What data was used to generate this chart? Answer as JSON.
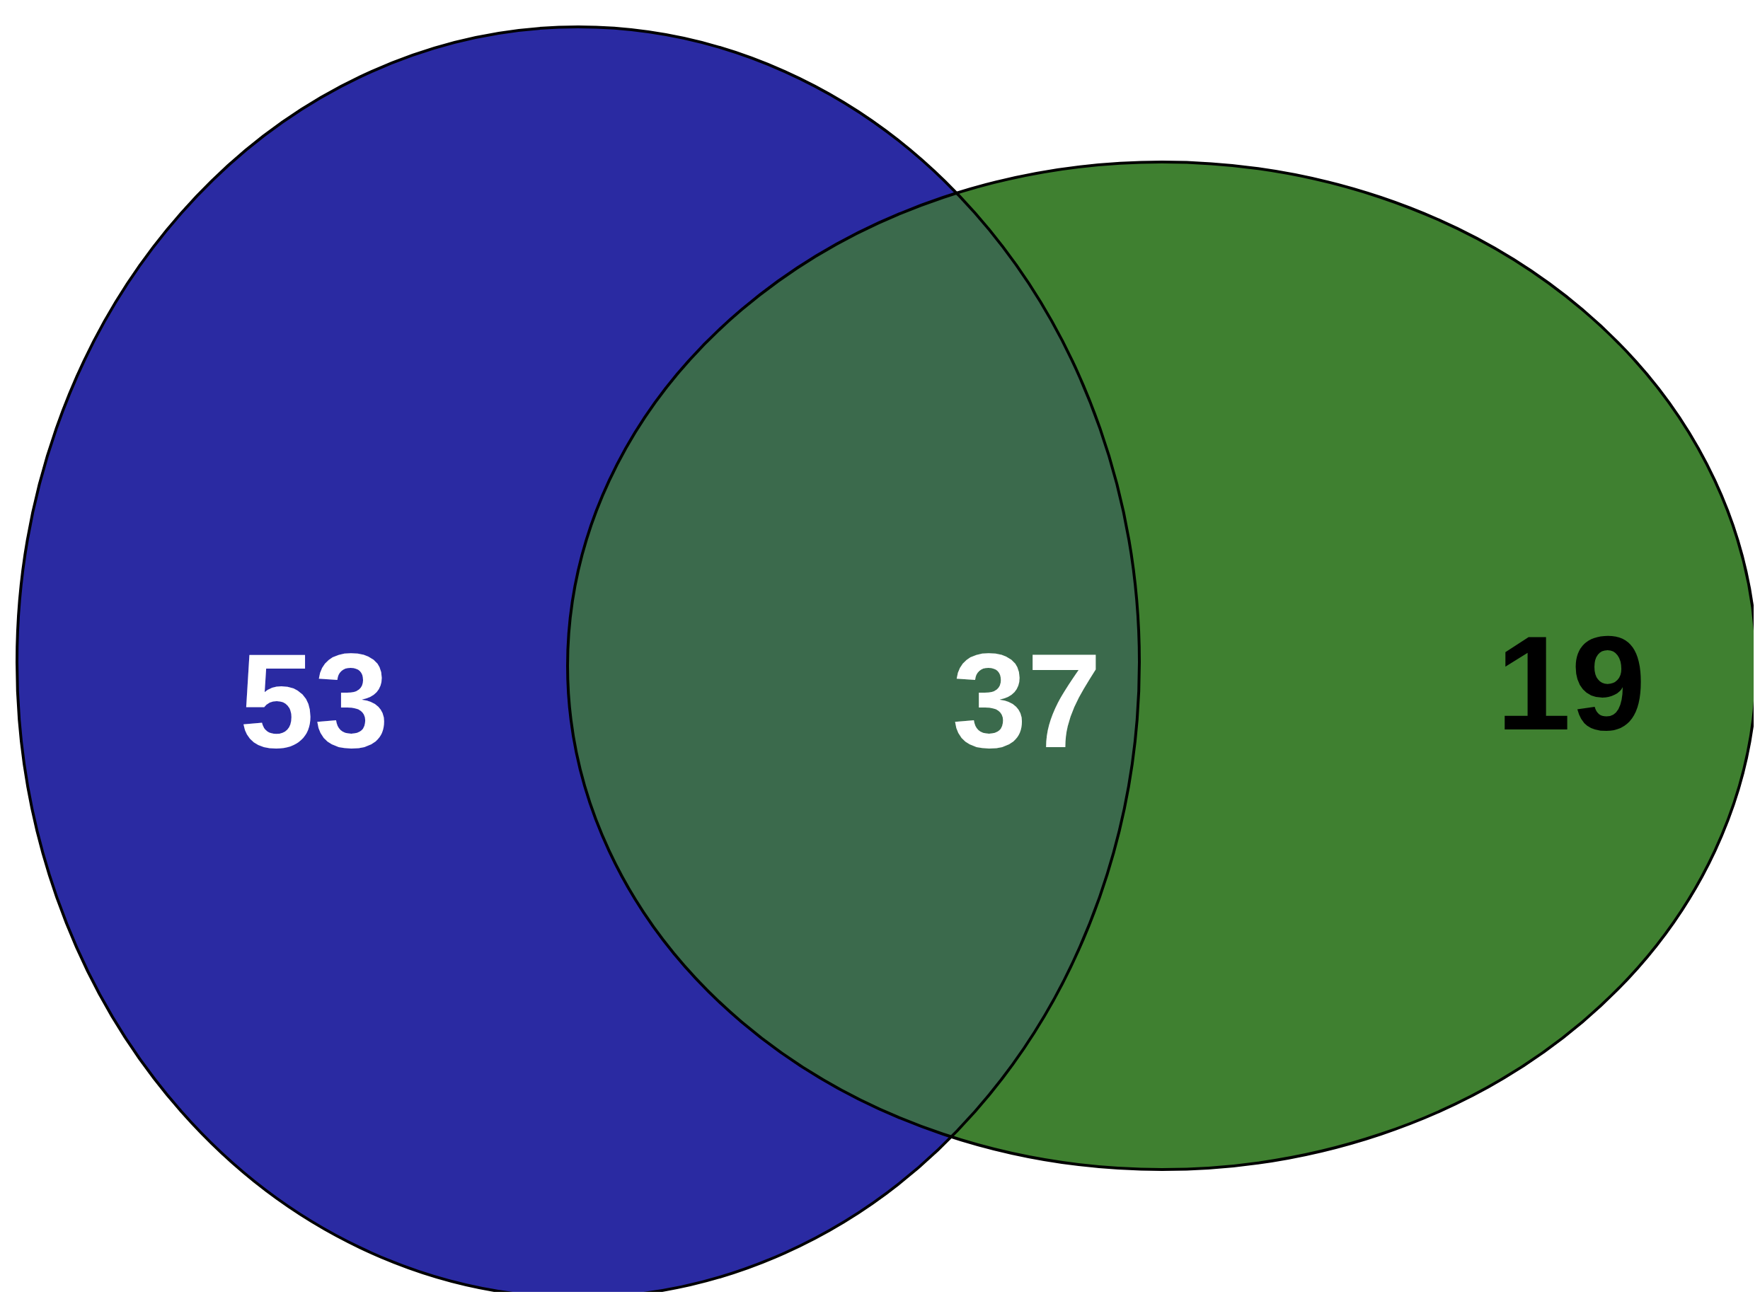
{
  "chart_data": {
    "type": "other",
    "categories": [
      null,
      null,
      null
    ],
    "values": [
      53,
      37,
      19
    ],
    "colors": [
      "#2a2aa2",
      "#3b6a4c",
      "#3f8030"
    ],
    "data_labels": true
  }
}
